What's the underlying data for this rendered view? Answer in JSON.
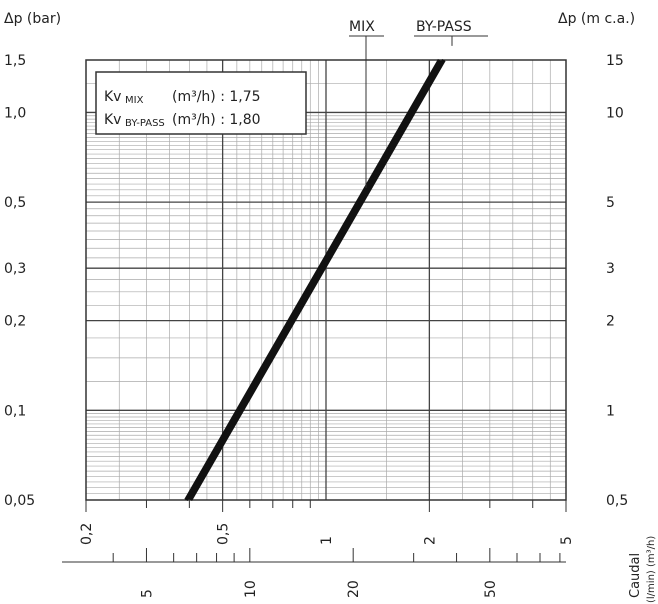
{
  "chart_data": {
    "type": "line",
    "left_axis_label": "Δp (bar)",
    "right_axis_label": "Δp (m c.a.)",
    "y_scale": "log",
    "ylim": [
      0.05,
      1.5
    ],
    "x_scale": "log",
    "xlim": [
      0.2,
      5
    ],
    "y_ticks_left": [
      "1,5",
      "1,0",
      "0,5",
      "0,3",
      "0,2",
      "0,1",
      "0,05"
    ],
    "y_ticks_left_values": [
      1.5,
      1.0,
      0.5,
      0.3,
      0.2,
      0.1,
      0.05
    ],
    "y_ticks_right": [
      "15",
      "10",
      "5",
      "3",
      "2",
      "1",
      "0,5"
    ],
    "x_ticks_m3h": [
      "0,2",
      "0,5",
      "1",
      "2",
      "5"
    ],
    "x_ticks_m3h_values": [
      0.2,
      0.5,
      1,
      2,
      5
    ],
    "x_ticks_lmin": [
      "5",
      "10",
      "20",
      "50"
    ],
    "x_ticks_lmin_values": [
      5,
      10,
      20,
      50
    ],
    "x_label": "Caudal",
    "x_units": "(l/min)  (m³/h)",
    "legend": {
      "row1": {
        "name": "Kv",
        "sub": "MIX",
        "unit": "(m³/h) : 1,75"
      },
      "row2": {
        "name": "Kv",
        "sub": "BY-PASS",
        "unit": "(m³/h) : 1,80"
      }
    },
    "grid": true,
    "series": [
      {
        "name": "MIX",
        "kv": 1.75
      },
      {
        "name": "BY-PASS",
        "kv": 1.8
      }
    ]
  }
}
